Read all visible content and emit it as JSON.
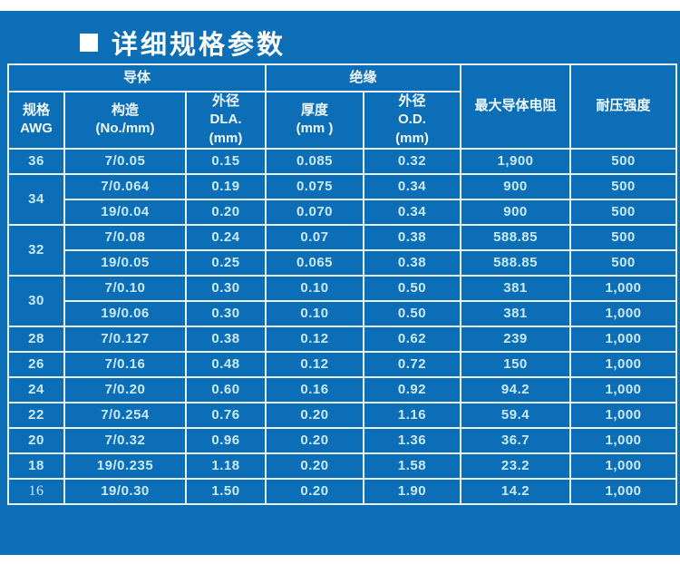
{
  "page": {
    "title": "详细规格参数"
  },
  "colors": {
    "panel_blue": "#0d6eb8",
    "border_light": "#e6f3fb",
    "header_text": "#eef8ff",
    "data_text": "#c9eafa",
    "title_text": "#ffffff",
    "page_background": "#ffffff"
  },
  "table": {
    "header": {
      "conductor_group": "导体",
      "insulation_group": "绝缘",
      "max_resistance": "最大导体电阻",
      "voltage": "耐压强度",
      "awg": "规格\nAWG",
      "construction": "构造\n(No./mm)",
      "conductor_od": "外径\nDLA.\n(mm)",
      "thickness": "厚度\n(mm )",
      "insulation_od": "外径\nO.D.\n(mm)"
    },
    "cell_names": [
      "construction",
      "conductor-od",
      "thickness",
      "insulation-od",
      "max-conductor-resistance",
      "withstand-voltage"
    ],
    "rows": [
      {
        "awg": "36",
        "span": 1,
        "cells": [
          "7/0.05",
          "0.15",
          "0.085",
          "0.32",
          "1,900",
          "500"
        ]
      },
      {
        "awg": "34",
        "span": 2,
        "cells": [
          "7/0.064",
          "0.19",
          "0.075",
          "0.34",
          "900",
          "500"
        ]
      },
      {
        "awg": null,
        "cells": [
          "19/0.04",
          "0.20",
          "0.070",
          "0.34",
          "900",
          "500"
        ]
      },
      {
        "awg": "32",
        "span": 2,
        "cells": [
          "7/0.08",
          "0.24",
          "0.07",
          "0.38",
          "588.85",
          "500"
        ]
      },
      {
        "awg": null,
        "cells": [
          "19/0.05",
          "0.25",
          "0.065",
          "0.38",
          "588.85",
          "500"
        ]
      },
      {
        "awg": "30",
        "span": 2,
        "cells": [
          "7/0.10",
          "0.30",
          "0.10",
          "0.50",
          "381",
          "1,000"
        ]
      },
      {
        "awg": null,
        "cells": [
          "19/0.06",
          "0.30",
          "0.10",
          "0.50",
          "381",
          "1,000"
        ]
      },
      {
        "awg": "28",
        "span": 1,
        "cells": [
          "7/0.127",
          "0.38",
          "0.12",
          "0.62",
          "239",
          "1,000"
        ]
      },
      {
        "awg": "26",
        "span": 1,
        "cells": [
          "7/0.16",
          "0.48",
          "0.12",
          "0.72",
          "150",
          "1,000"
        ]
      },
      {
        "awg": "24",
        "span": 1,
        "cells": [
          "7/0.20",
          "0.60",
          "0.16",
          "0.92",
          "94.2",
          "1,000"
        ]
      },
      {
        "awg": "22",
        "span": 1,
        "cells": [
          "7/0.254",
          "0.76",
          "0.20",
          "1.16",
          "59.4",
          "1,000"
        ]
      },
      {
        "awg": "20",
        "span": 1,
        "cells": [
          "7/0.32",
          "0.96",
          "0.20",
          "1.36",
          "36.7",
          "1,000"
        ]
      },
      {
        "awg": "18",
        "span": 1,
        "cells": [
          "19/0.235",
          "1.18",
          "0.20",
          "1.58",
          "23.2",
          "1,000"
        ]
      },
      {
        "awg": "16",
        "span": 1,
        "awg_serif": true,
        "cells": [
          "19/0.30",
          "1.50",
          "0.20",
          "1.90",
          "14.2",
          "1,000"
        ]
      }
    ]
  }
}
